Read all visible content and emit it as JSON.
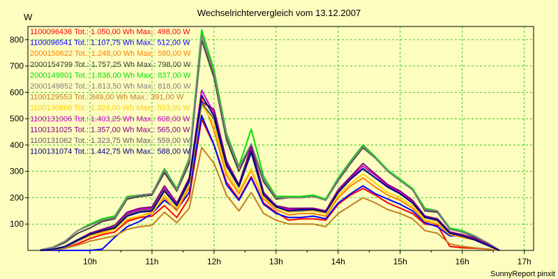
{
  "chart_data": {
    "type": "line",
    "title": "Wechselrichtervergleich vom 13.12.2007",
    "ylabel": "W",
    "xlabel": "",
    "footer": "SunnyReport pinxit",
    "ylim": [
      0,
      850
    ],
    "xlim": [
      9.0,
      17.15
    ],
    "y_ticks": [
      100,
      200,
      300,
      400,
      500,
      600,
      700,
      800
    ],
    "x_ticks": [
      10,
      11,
      12,
      13,
      14,
      15,
      16,
      17
    ],
    "x_tick_labels": [
      "10h",
      "11h",
      "12h",
      "13h",
      "14h",
      "15h",
      "16h",
      "17h"
    ],
    "grid": true,
    "legend_position": "top-left",
    "x": [
      9.2,
      9.4,
      9.6,
      9.8,
      10.0,
      10.2,
      10.4,
      10.6,
      10.8,
      11.0,
      11.2,
      11.4,
      11.6,
      11.8,
      12.0,
      12.2,
      12.4,
      12.6,
      12.8,
      13.0,
      13.2,
      13.4,
      13.6,
      13.8,
      14.0,
      14.2,
      14.4,
      14.6,
      14.8,
      15.0,
      15.2,
      15.4,
      15.6,
      15.8,
      16.0,
      16.2,
      16.4,
      16.6
    ],
    "series": [
      {
        "name": "1100096436",
        "label": "1100096436 Tot.: 1.050,00 Wh Max.: 498,00 W",
        "color": "#ff0000",
        "values": [
          0,
          2,
          8,
          25,
          45,
          60,
          70,
          110,
          125,
          130,
          170,
          125,
          200,
          498,
          400,
          260,
          195,
          280,
          180,
          145,
          115,
          120,
          120,
          115,
          175,
          210,
          235,
          210,
          180,
          160,
          140,
          100,
          95,
          15,
          10,
          8,
          5,
          0
        ]
      },
      {
        "name": "1100096541",
        "label": "1100096541 Tot.: 1.107,75 Wh Max.: 512,00 W",
        "color": "#0000ff",
        "values": [
          0,
          0,
          0,
          0,
          0,
          5,
          50,
          90,
          110,
          140,
          190,
          155,
          220,
          512,
          400,
          250,
          190,
          275,
          175,
          140,
          125,
          125,
          130,
          120,
          180,
          215,
          245,
          215,
          195,
          175,
          150,
          105,
          90,
          55,
          55,
          40,
          25,
          0
        ]
      },
      {
        "name": "2000150622",
        "label": "2000150622 Tot.: 1.248,00 Wh Max.: 580,00 W",
        "color": "#ff8000",
        "values": [
          0,
          3,
          12,
          35,
          55,
          70,
          85,
          115,
          130,
          145,
          200,
          150,
          240,
          580,
          455,
          285,
          215,
          305,
          195,
          155,
          135,
          140,
          140,
          130,
          200,
          245,
          275,
          240,
          210,
          190,
          160,
          110,
          100,
          60,
          50,
          40,
          20,
          0
        ]
      },
      {
        "name": "2000154799",
        "label": "2000154799 Tot.: 1.757,25 Wh Max.: 798,00 W",
        "color": "#404040",
        "values": [
          2,
          10,
          30,
          65,
          85,
          110,
          120,
          195,
          205,
          210,
          295,
          225,
          330,
          798,
          655,
          420,
          300,
          400,
          260,
          195,
          200,
          200,
          205,
          190,
          265,
          330,
          390,
          350,
          300,
          265,
          230,
          150,
          145,
          80,
          70,
          50,
          30,
          0
        ]
      },
      {
        "name": "2000149801",
        "label": "2000149801 Tot.: 1.836,00 Wh Max.: 837,00 W",
        "color": "#00e000",
        "values": [
          2,
          12,
          35,
          75,
          100,
          120,
          130,
          205,
          210,
          215,
          310,
          235,
          350,
          837,
          685,
          445,
          320,
          460,
          280,
          205,
          205,
          205,
          210,
          195,
          275,
          340,
          400,
          355,
          305,
          270,
          235,
          160,
          150,
          85,
          75,
          55,
          30,
          0
        ]
      },
      {
        "name": "2000149852",
        "label": "2000149852 Tot.: 1.813,50 Wh Max.: 818,00 W",
        "color": "#808080",
        "values": [
          2,
          12,
          35,
          75,
          95,
          115,
          125,
          200,
          210,
          215,
          305,
          230,
          345,
          818,
          670,
          435,
          315,
          405,
          270,
          200,
          200,
          200,
          205,
          190,
          270,
          335,
          395,
          350,
          300,
          265,
          230,
          155,
          150,
          80,
          70,
          55,
          30,
          0
        ]
      },
      {
        "name": "1100129553",
        "label": "1100129553 Tot.: 849,00 Wh Max.: 391,00 W",
        "color": "#c08020",
        "values": [
          0,
          2,
          8,
          20,
          35,
          45,
          55,
          80,
          90,
          95,
          145,
          105,
          160,
          391,
          330,
          210,
          150,
          220,
          140,
          115,
          100,
          100,
          100,
          90,
          140,
          170,
          200,
          180,
          155,
          140,
          120,
          75,
          65,
          25,
          15,
          10,
          5,
          0
        ]
      },
      {
        "name": "1100130866",
        "label": "1100130866 Tot.: 1.324,00 Wh Max.: 553,00 W",
        "color": "#ffd000",
        "values": [
          0,
          3,
          12,
          35,
          55,
          65,
          80,
          120,
          130,
          140,
          210,
          160,
          250,
          553,
          480,
          300,
          225,
          310,
          200,
          165,
          145,
          150,
          150,
          140,
          210,
          255,
          290,
          255,
          220,
          200,
          170,
          115,
          110,
          60,
          55,
          40,
          20,
          0
        ]
      },
      {
        "name": "1100131006",
        "label": "1100131006 Tot.: 1.403,25 Wh Max.: 608,00 W",
        "color": "#d000d0",
        "values": [
          0,
          4,
          15,
          40,
          65,
          80,
          95,
          140,
          155,
          160,
          235,
          175,
          270,
          608,
          520,
          330,
          245,
          385,
          215,
          170,
          155,
          160,
          160,
          150,
          225,
          275,
          320,
          285,
          245,
          220,
          185,
          130,
          120,
          70,
          60,
          45,
          25,
          0
        ]
      },
      {
        "name": "1100131025",
        "label": "1100131025 Tot.: 1.357,00 Wh Max.: 565,00 W",
        "color": "#800080",
        "values": [
          0,
          4,
          15,
          40,
          65,
          80,
          95,
          145,
          160,
          165,
          245,
          180,
          275,
          565,
          535,
          340,
          250,
          395,
          220,
          170,
          160,
          160,
          160,
          150,
          230,
          280,
          330,
          290,
          250,
          225,
          190,
          130,
          120,
          70,
          60,
          45,
          25,
          0
        ]
      },
      {
        "name": "1100131062",
        "label": "1100131062 Tot.: 1.323,75 Wh Max.: 559,00 W",
        "color": "#606060",
        "values": [
          0,
          3,
          12,
          35,
          60,
          75,
          90,
          135,
          150,
          155,
          230,
          170,
          260,
          559,
          500,
          320,
          240,
          370,
          210,
          165,
          150,
          150,
          155,
          145,
          220,
          270,
          310,
          275,
          240,
          215,
          180,
          125,
          115,
          65,
          55,
          40,
          20,
          0
        ]
      },
      {
        "name": "1100131074",
        "label": "1100131074 Tot.: 1.442,75 Wh Max.: 588,00 W",
        "color": "#000080",
        "values": [
          0,
          4,
          15,
          40,
          60,
          75,
          85,
          130,
          145,
          150,
          225,
          170,
          265,
          588,
          510,
          325,
          245,
          375,
          210,
          165,
          150,
          155,
          155,
          145,
          220,
          270,
          310,
          275,
          240,
          215,
          180,
          125,
          115,
          65,
          55,
          40,
          20,
          0
        ]
      }
    ]
  }
}
